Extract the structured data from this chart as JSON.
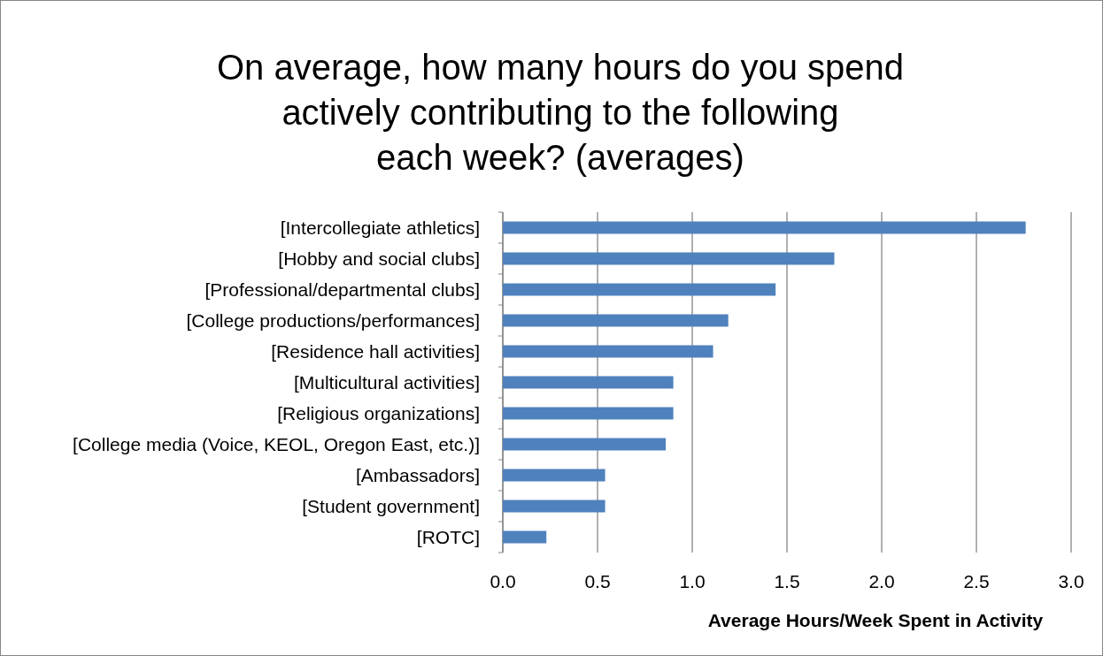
{
  "chart_data": {
    "type": "bar",
    "orientation": "horizontal",
    "title": "On average, how many hours do you spend actively contributing to the following each week? (averages)",
    "xlabel": "Average Hours/Week Spent in Activity",
    "categories": [
      "[Intercollegiate athletics]",
      "[Hobby and social clubs]",
      "[Professional/departmental clubs]",
      "[College productions/performances]",
      "[Residence hall activities]",
      "[Multicultural activities]",
      "[Religious organizations]",
      "[College media (Voice, KEOL, Oregon East, etc.)]",
      "[Ambassadors]",
      "[Student government]",
      "[ROTC]"
    ],
    "values": [
      2.76,
      1.75,
      1.44,
      1.19,
      1.11,
      0.9,
      0.9,
      0.86,
      0.54,
      0.54,
      0.23
    ],
    "color": "#4f81bd",
    "xlim": [
      0,
      3
    ],
    "xticks": [
      {
        "value": 0,
        "label": "0.0"
      },
      {
        "value": 0.5,
        "label": "0.5"
      },
      {
        "value": 1,
        "label": "1.0"
      },
      {
        "value": 1.5,
        "label": "1.5"
      },
      {
        "value": 2,
        "label": "2.0"
      },
      {
        "value": 2.5,
        "label": "2.5"
      },
      {
        "value": 3,
        "label": "3.0"
      }
    ],
    "grid": "x"
  }
}
